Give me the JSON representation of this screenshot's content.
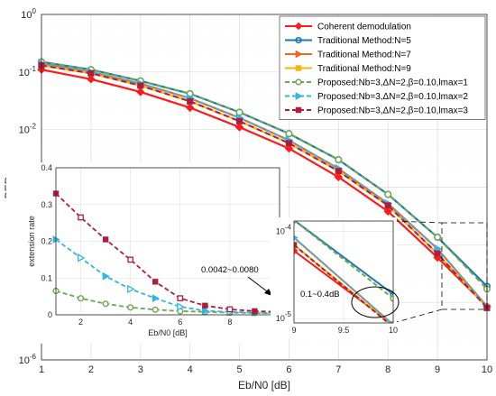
{
  "chart_data": [
    {
      "type": "line",
      "xlabel": "Eb/N0 [dB]",
      "ylabel": "BER",
      "xlim": [
        1,
        10
      ],
      "ylim": [
        1e-06,
        1
      ],
      "yscale": "log",
      "grid": true,
      "legend": "top-right",
      "xticks": [
        "1",
        "2",
        "3",
        "4",
        "5",
        "6",
        "7",
        "8",
        "9",
        "10"
      ],
      "yticks": [
        {
          "value": 1,
          "mantissa": "10",
          "exp": "0"
        },
        {
          "value": 0.1,
          "mantissa": "10",
          "exp": "-1"
        },
        {
          "value": 0.01,
          "mantissa": "10",
          "exp": "-2"
        },
        {
          "value": 0.001,
          "mantissa": "10",
          "exp": "-3"
        },
        {
          "value": 0.0001,
          "mantissa": "10",
          "exp": "-4"
        },
        {
          "value": 1e-05,
          "mantissa": "10",
          "exp": "-5"
        },
        {
          "value": 1e-06,
          "mantissa": "10",
          "exp": "-6"
        }
      ],
      "x": [
        1,
        2,
        3,
        4,
        5,
        6,
        7,
        8,
        9,
        10
      ],
      "series": [
        {
          "name": "Coherent demodulation",
          "color": "#ff1a1a",
          "marker": "diamond",
          "dash": "solid",
          "values": [
            0.11,
            0.075,
            0.045,
            0.024,
            0.011,
            0.0047,
            0.0015,
            0.00038,
            6e-05,
            8.5e-06
          ]
        },
        {
          "name": "Traditional Method:N=5",
          "color": "#1f77b4",
          "marker": "circle",
          "dash": "solid",
          "values": [
            0.15,
            0.11,
            0.07,
            0.042,
            0.02,
            0.0085,
            0.003,
            0.00075,
            0.000135,
            1.9e-05
          ]
        },
        {
          "name": "Traditional Method:N=7",
          "color": "#f26522",
          "marker": "triangle-right",
          "dash": "solid",
          "values": [
            0.14,
            0.1,
            0.063,
            0.035,
            0.016,
            0.0065,
            0.0021,
            0.00052,
            8.5e-05,
            8.5e-06
          ]
        },
        {
          "name": "Traditional Method:N=9",
          "color": "#f5b512",
          "marker": "square",
          "dash": "solid",
          "values": [
            0.13,
            0.095,
            0.058,
            0.031,
            0.014,
            0.0058,
            0.0019,
            0.00048,
            7e-05,
            8.2e-06
          ]
        },
        {
          "name": "Proposed:Nb=3,ΔN=2,β=0.10,lmax=1",
          "color": "#6aa84f",
          "marker": "circle-open",
          "dash": "dashed",
          "values": [
            0.15,
            0.11,
            0.07,
            0.042,
            0.02,
            0.0085,
            0.003,
            0.00075,
            0.000135,
            1.7e-05
          ]
        },
        {
          "name": "Proposed:Nb=3,ΔN=2,β=0.10,lmax=2",
          "color": "#33b5e5",
          "marker": "triangle-right",
          "dash": "dashed",
          "values": [
            0.14,
            0.1,
            0.063,
            0.035,
            0.016,
            0.0065,
            0.0021,
            0.00052,
            8.5e-05,
            8.5e-06
          ]
        },
        {
          "name": "Proposed:Nb=3,ΔN=2,β=0.10,lmax=3",
          "color": "#b01c3c",
          "marker": "square",
          "dash": "dashed",
          "values": [
            0.13,
            0.095,
            0.058,
            0.031,
            0.014,
            0.0058,
            0.0019,
            0.00048,
            7e-05,
            8e-06
          ]
        }
      ]
    },
    {
      "type": "line",
      "xlabel": "Eb/N0 [dB]",
      "ylabel": "extension rate",
      "xlim": [
        1,
        10
      ],
      "ylim": [
        0,
        0.4
      ],
      "grid": true,
      "xticks": [
        "2",
        "4",
        "6",
        "8",
        "10"
      ],
      "yticks": [
        "0",
        "0.1",
        "0.2",
        "0.3",
        "0.4"
      ],
      "x": [
        1,
        2,
        3,
        4,
        5,
        6,
        7,
        8,
        9,
        10
      ],
      "annotation": "0.0042~0.0080",
      "series": [
        {
          "name": "lmax=1",
          "color": "#6aa84f",
          "marker": "circle",
          "values": [
            0.065,
            0.045,
            0.03,
            0.02,
            0.014,
            0.01,
            0.008,
            0.006,
            0.005,
            0.0042
          ]
        },
        {
          "name": "lmax=2",
          "color": "#33b5e5",
          "marker": "triangle-right",
          "values": [
            0.205,
            0.155,
            0.105,
            0.07,
            0.045,
            0.022,
            0.011,
            0.008,
            0.006,
            0.005
          ]
        },
        {
          "name": "lmax=3",
          "color": "#b01c3c",
          "marker": "square",
          "values": [
            0.33,
            0.265,
            0.205,
            0.15,
            0.09,
            0.045,
            0.025,
            0.015,
            0.01,
            0.008
          ]
        }
      ]
    },
    {
      "type": "line",
      "xlim": [
        9,
        10
      ],
      "ylim": [
        1e-05,
        0.0001
      ],
      "yscale": "log",
      "grid": true,
      "xticks": [
        "9",
        "9.5",
        "10"
      ],
      "yticks": [
        {
          "value": 0.0001,
          "mantissa": "10",
          "exp": "-4"
        },
        {
          "value": 1e-05,
          "mantissa": "10",
          "exp": "-5"
        }
      ],
      "annotation": "0.1~0.4dB"
    }
  ]
}
